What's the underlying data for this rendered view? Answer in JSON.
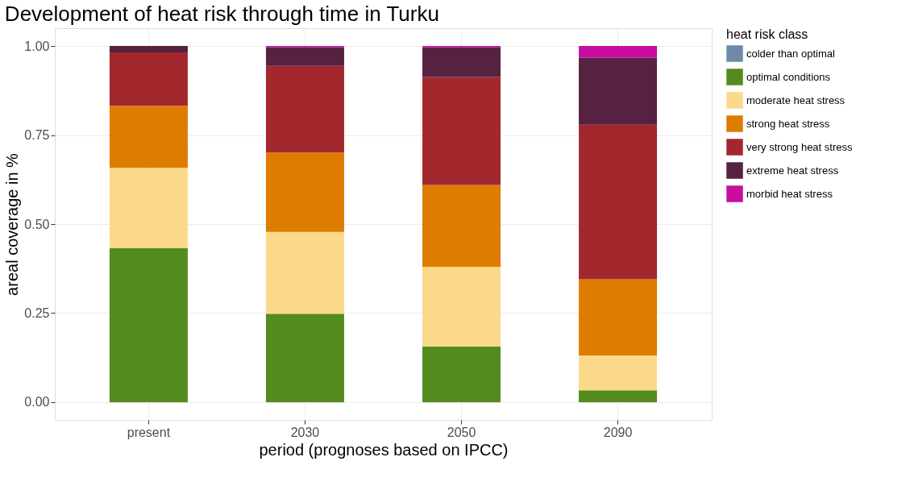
{
  "chart_data": {
    "type": "bar",
    "stacked": true,
    "title": "Development of heat risk through time in Turku",
    "xlabel": "period (prognoses based on IPCC)",
    "ylabel": "areal coverage in %",
    "legend_title": "heat risk class",
    "categories": [
      "present",
      "2030",
      "2050",
      "2090"
    ],
    "series": [
      {
        "name": "colder than optimal",
        "color": "#6f8aa9",
        "values": [
          null,
          null,
          null,
          null
        ]
      },
      {
        "name": "optimal conditions",
        "color": "#548b1f",
        "values": [
          0.432,
          0.248,
          0.156,
          0.033
        ]
      },
      {
        "name": "moderate heat stress",
        "color": "#fad98b",
        "values": [
          0.226,
          0.23,
          0.224,
          0.098
        ]
      },
      {
        "name": "strong heat stress",
        "color": "#de7c00",
        "values": [
          0.174,
          0.223,
          0.23,
          0.214
        ]
      },
      {
        "name": "very strong heat stress",
        "color": "#a3282d",
        "values": [
          0.15,
          0.243,
          0.303,
          0.434
        ]
      },
      {
        "name": "extreme heat stress",
        "color": "#552241",
        "values": [
          0.018,
          0.053,
          0.083,
          0.188
        ]
      },
      {
        "name": "morbid heat stress",
        "color": "#c80e9f",
        "values": [
          0,
          0.003,
          0.004,
          0.033
        ]
      }
    ],
    "ylim": [
      -0.05,
      1.05
    ],
    "yticks": [
      {
        "value": 0,
        "label": "0.00"
      },
      {
        "value": 0.25,
        "label": "0.25"
      },
      {
        "value": 0.5,
        "label": "0.50"
      },
      {
        "value": 0.75,
        "label": "0.75"
      },
      {
        "value": 1,
        "label": "1.00"
      }
    ],
    "grid": true,
    "legend": "right"
  }
}
